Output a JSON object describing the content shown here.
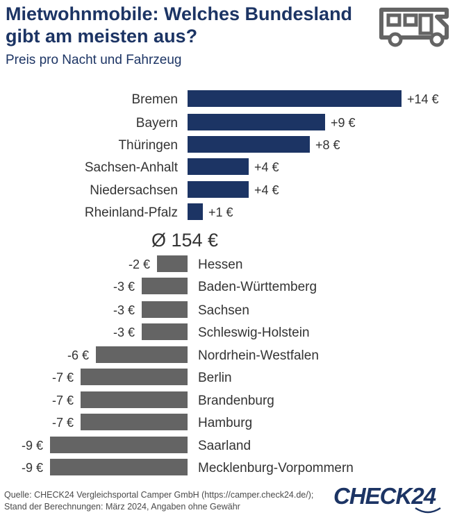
{
  "title": "Mietwohnmobile: Welches Bundesland gibt am meisten aus?",
  "subtitle": "Preis pro Nacht und Fahrzeug",
  "average_label": "Ø 154 €",
  "footer": {
    "line1": "Quelle: CHECK24 Vergleichsportal Camper GmbH (https://camper.check24.de/);",
    "line2": "Stand der Berechnungen: März 2024, Angaben ohne Gewähr"
  },
  "logo_text": "CHECK24",
  "icon": "camper-van-icon",
  "colors": {
    "positive": "#1c3464",
    "negative": "#646464",
    "title": "#1c3464"
  },
  "chart_data": {
    "type": "bar",
    "orientation": "horizontal",
    "baseline_value": 154,
    "unit": "€",
    "categories": [
      "Bremen",
      "Bayern",
      "Thüringen",
      "Sachsen-Anhalt",
      "Niedersachsen",
      "Rheinland-Pfalz",
      "Hessen",
      "Baden-Württemberg",
      "Sachsen",
      "Schleswig-Holstein",
      "Nordrhein-Westfalen",
      "Berlin",
      "Brandenburg",
      "Hamburg",
      "Saarland",
      "Mecklenburg-Vorpommern"
    ],
    "values": [
      14,
      9,
      8,
      4,
      4,
      1,
      -2,
      -3,
      -3,
      -3,
      -6,
      -7,
      -7,
      -7,
      -9,
      -9
    ],
    "value_labels": [
      "+14 €",
      "+9 €",
      "+8 €",
      "+4 €",
      "+4 €",
      "+1 €",
      "-2 €",
      "-3 €",
      "-3 €",
      "-3 €",
      "-6 €",
      "-7 €",
      "-7 €",
      "-7 €",
      "-9 €",
      "-9 €"
    ]
  }
}
